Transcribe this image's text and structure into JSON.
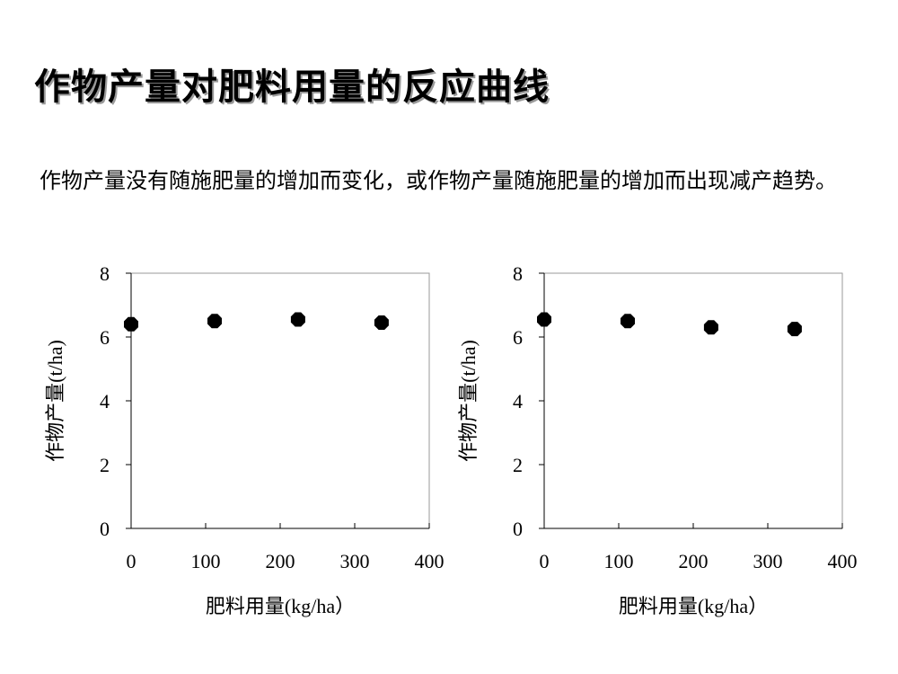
{
  "slide": {
    "title": "作物产量对肥料用量的反应曲线",
    "body": "作物产量没有随施肥量的增加而变化，或作物产量随施肥量的增加而出现减产趋势。"
  },
  "chart_data": [
    {
      "type": "scatter",
      "xlabel": "肥料用量(kg/ha）",
      "ylabel": "作物产量(t/ha)",
      "xlim": [
        0,
        400
      ],
      "ylim": [
        0,
        8
      ],
      "xticks": [
        0,
        100,
        200,
        300,
        400
      ],
      "yticks": [
        0,
        2,
        4,
        6,
        8
      ],
      "grid": false,
      "legend": "none",
      "marker_color": "#000000",
      "series": [
        {
          "x": [
            0,
            112,
            224,
            336
          ],
          "y": [
            6.4,
            6.5,
            6.55,
            6.45
          ]
        }
      ]
    },
    {
      "type": "scatter",
      "xlabel": "肥料用量(kg/ha）",
      "ylabel": "作物产量(t/ha)",
      "xlim": [
        0,
        400
      ],
      "ylim": [
        0,
        8
      ],
      "xticks": [
        0,
        100,
        200,
        300,
        400
      ],
      "yticks": [
        0,
        2,
        4,
        6,
        8
      ],
      "grid": false,
      "legend": "none",
      "marker_color": "#000000",
      "series": [
        {
          "x": [
            0,
            112,
            224,
            336
          ],
          "y": [
            6.55,
            6.5,
            6.3,
            6.25
          ]
        }
      ]
    }
  ]
}
